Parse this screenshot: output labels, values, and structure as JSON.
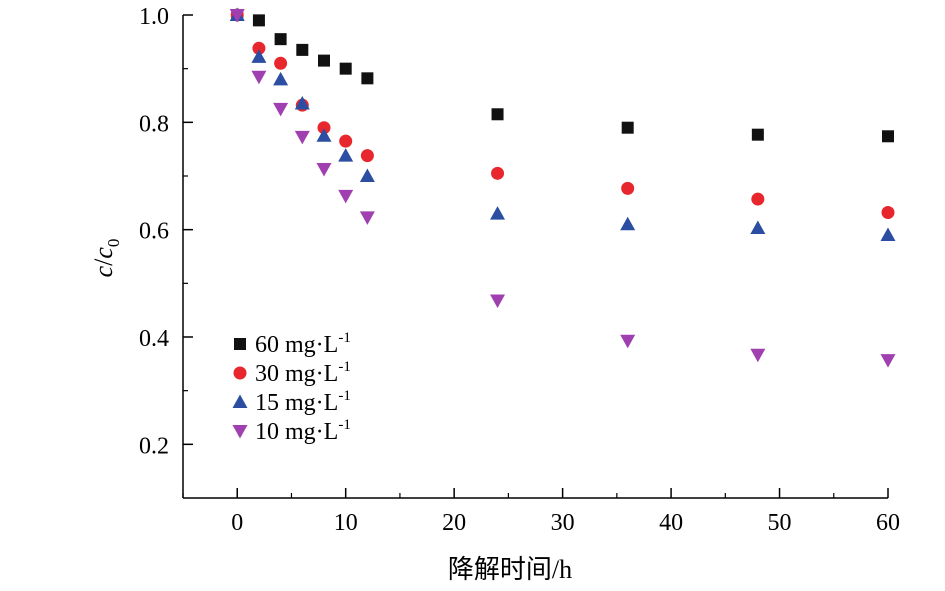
{
  "chart_data": {
    "type": "scatter",
    "title": "",
    "xlabel": "降解时间/h",
    "ylabel": {
      "italic_c": "c",
      "slash": "/",
      "italic_c0": "c",
      "sub": "0"
    },
    "xlim": [
      -5,
      60
    ],
    "ylim": [
      0.1,
      1.0
    ],
    "xticks": [
      0,
      10,
      20,
      30,
      40,
      50,
      60
    ],
    "xticklabels": [
      "0",
      "10",
      "20",
      "30",
      "40",
      "50",
      "60"
    ],
    "yticks": [
      0.2,
      0.4,
      0.6,
      0.8,
      1.0
    ],
    "yticklabels": [
      "0.2",
      "0.4",
      "0.6",
      "0.8",
      "1.0"
    ],
    "grid": false,
    "legend": {
      "position": "lower-left"
    },
    "x": [
      0,
      2,
      4,
      6,
      8,
      10,
      12,
      24,
      36,
      48,
      60
    ],
    "series": [
      {
        "name": "60 mg·L",
        "sup": "-1",
        "marker": "square",
        "color": "#111111",
        "values": [
          1.0,
          0.99,
          0.955,
          0.935,
          0.915,
          0.9,
          0.882,
          0.815,
          0.79,
          0.777,
          0.774
        ]
      },
      {
        "name": "30 mg·L",
        "sup": "-1",
        "marker": "circle",
        "color": "#e8262d",
        "values": [
          1.0,
          0.938,
          0.91,
          0.832,
          0.79,
          0.765,
          0.738,
          0.705,
          0.677,
          0.657,
          0.632
        ]
      },
      {
        "name": "15 mg·L",
        "sup": "-1",
        "marker": "triangle-up",
        "color": "#2b4ea2",
        "values": [
          1.0,
          0.922,
          0.88,
          0.835,
          0.775,
          0.738,
          0.7,
          0.63,
          0.61,
          0.603,
          0.59
        ]
      },
      {
        "name": "10 mg·L",
        "sup": "-1",
        "marker": "triangle-down",
        "color": "#a040b0",
        "values": [
          1.0,
          0.885,
          0.825,
          0.773,
          0.713,
          0.663,
          0.623,
          0.468,
          0.393,
          0.367,
          0.357
        ]
      }
    ]
  }
}
